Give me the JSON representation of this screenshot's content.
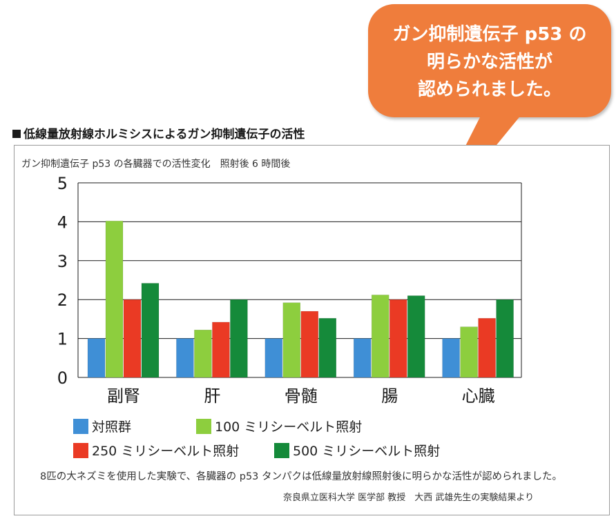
{
  "callout": {
    "lines": [
      "ガン抑制遺伝子 p53 の",
      "明らかな活性が",
      "認められました。"
    ]
  },
  "section_title": "低線量放射線ホルミシスによるガン抑制遺伝子の活性",
  "chart_data": {
    "type": "bar",
    "title": "ガン抑制遺伝子 p53 の各臓器での活性変化　照射後 6 時間後",
    "categories": [
      "副腎",
      "肝",
      "骨髄",
      "腸",
      "心臓"
    ],
    "series": [
      {
        "name": "対照群",
        "color": "#3f8fd6",
        "values": [
          1,
          1,
          1,
          1,
          1
        ]
      },
      {
        "name": "100 ミリシーベルト照射",
        "color": "#8dce3e",
        "values": [
          4.02,
          1.22,
          1.92,
          2.12,
          1.3
        ]
      },
      {
        "name": "250 ミリシーベルト照射",
        "color": "#ea3a24",
        "values": [
          2.0,
          1.42,
          1.7,
          2.0,
          1.52
        ]
      },
      {
        "name": "500 ミリシーベルト照射",
        "color": "#158a3a",
        "values": [
          2.42,
          2.0,
          1.52,
          2.1,
          2.0
        ]
      }
    ],
    "ylim": [
      0,
      5
    ],
    "yticks": [
      "0",
      "1",
      "2",
      "3",
      "4",
      "5"
    ],
    "xlabel": "",
    "ylabel": "",
    "grid": true
  },
  "legend": {
    "items": [
      "対照群",
      "100 ミリシーベルト照射",
      "250 ミリシーベルト照射",
      "500 ミリシーベルト照射"
    ],
    "colors": [
      "#3f8fd6",
      "#8dce3e",
      "#ea3a24",
      "#158a3a"
    ]
  },
  "footnote": "8匹の大ネズミを使用した実験で、各臓器の p53 タンパクは低線量放射線照射後に明らかな活性が認められました。",
  "credit": "奈良県立医科大学 医学部 教授　大西 武雄先生の実験結果より"
}
